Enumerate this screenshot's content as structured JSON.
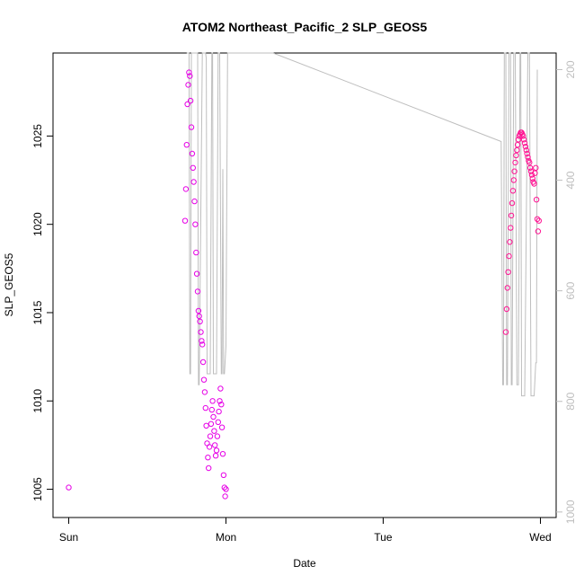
{
  "chart_data": {
    "type": "scatter",
    "title": "ATOM2 Northeast_Pacific_2 SLP_GEOS5",
    "xlabel": "Date",
    "ylabel": "SLP_GEOS5",
    "x_unit": "days from Sun 00:00",
    "xlim": [
      -0.1,
      3.1
    ],
    "ylim": [
      1003.4,
      1029.7
    ],
    "x_ticks": [
      {
        "value": 0,
        "label": "Sun"
      },
      {
        "value": 1,
        "label": "Mon"
      },
      {
        "value": 2,
        "label": "Tue"
      },
      {
        "value": 3,
        "label": "Wed"
      }
    ],
    "y_ticks": [
      {
        "value": 1005,
        "label": "1005"
      },
      {
        "value": 1010,
        "label": "1010"
      },
      {
        "value": 1015,
        "label": "1015"
      },
      {
        "value": 1020,
        "label": "1020"
      },
      {
        "value": 1025,
        "label": "1025"
      }
    ],
    "y2_lim": [
      1010,
      170
    ],
    "y2_ticks": [
      {
        "value": 200,
        "label": "200"
      },
      {
        "value": 400,
        "label": "400"
      },
      {
        "value": 600,
        "label": "600"
      },
      {
        "value": 800,
        "label": "800"
      },
      {
        "value": 1000,
        "label": "1000"
      }
    ],
    "colors": {
      "points": "#e600e6",
      "points_alt": "#ff1493",
      "line": "#bebebe"
    },
    "secondary_line": {
      "x": [
        0.75,
        0.765,
        0.77,
        0.775,
        0.78,
        0.8,
        0.82,
        0.825,
        0.83,
        0.85,
        0.87,
        0.875,
        0.88,
        0.9,
        0.91,
        0.915,
        0.92,
        0.94,
        0.95,
        0.955,
        0.96,
        0.97,
        0.975,
        0.98,
        0.985,
        0.99,
        1.0,
        1.01,
        1.3,
        2.75,
        2.76,
        2.765,
        2.77,
        2.78,
        2.785,
        2.79,
        2.8,
        2.81,
        2.815,
        2.82,
        2.83,
        2.84,
        2.85,
        2.86,
        2.87,
        2.875,
        2.88,
        2.9,
        2.92,
        2.93,
        2.94,
        2.96,
        2.97,
        2.975,
        2.98
      ],
      "y": [
        170,
        170,
        750,
        750,
        170,
        170,
        170,
        770,
        770,
        170,
        170,
        180,
        750,
        750,
        170,
        170,
        750,
        750,
        170,
        170,
        170,
        750,
        750,
        380,
        750,
        750,
        700,
        170,
        170,
        330,
        770,
        770,
        170,
        170,
        770,
        770,
        170,
        170,
        770,
        770,
        170,
        170,
        770,
        770,
        170,
        170,
        790,
        790,
        170,
        170,
        790,
        790,
        730,
        730,
        200
      ]
    },
    "series": [
      {
        "name": "",
        "x": [
          0.0,
          0.74,
          0.745,
          0.75,
          0.755,
          0.76,
          0.765,
          0.77,
          0.775,
          0.78,
          0.785,
          0.79,
          0.795,
          0.8,
          0.805,
          0.81,
          0.815,
          0.82,
          0.825,
          0.83,
          0.835,
          0.84,
          0.845,
          0.85,
          0.855,
          0.86,
          0.865,
          0.87,
          0.875,
          0.88,
          0.885,
          0.89,
          0.895,
          0.9,
          0.905,
          0.91,
          0.915,
          0.92,
          0.925,
          0.93,
          0.935,
          0.94,
          0.945,
          0.95,
          0.955,
          0.96,
          0.965,
          0.97,
          0.975,
          0.98,
          0.985,
          0.99,
          0.995,
          1.0
        ],
        "y": [
          1005.1,
          1020.2,
          1022.0,
          1024.5,
          1026.8,
          1027.9,
          1028.6,
          1028.4,
          1027.0,
          1025.5,
          1024.0,
          1023.2,
          1022.4,
          1021.3,
          1020.0,
          1018.4,
          1017.2,
          1016.2,
          1015.1,
          1014.8,
          1014.5,
          1013.9,
          1013.4,
          1013.2,
          1012.2,
          1011.2,
          1010.5,
          1009.6,
          1008.6,
          1007.6,
          1006.8,
          1006.2,
          1007.4,
          1008.0,
          1008.7,
          1009.5,
          1010.0,
          1009.1,
          1008.3,
          1007.5,
          1006.9,
          1007.2,
          1008.0,
          1008.8,
          1009.4,
          1010.0,
          1010.7,
          1009.8,
          1008.5,
          1007.0,
          1005.8,
          1005.1,
          1004.6,
          1005.0
        ]
      },
      {
        "name": "",
        "x": [
          2.78,
          2.785,
          2.79,
          2.795,
          2.8,
          2.805,
          2.81,
          2.815,
          2.82,
          2.825,
          2.83,
          2.835,
          2.84,
          2.845,
          2.85,
          2.855,
          2.86,
          2.865,
          2.87,
          2.875,
          2.88,
          2.885,
          2.89,
          2.895,
          2.9,
          2.905,
          2.91,
          2.915,
          2.92,
          2.925,
          2.93,
          2.935,
          2.94,
          2.945,
          2.95,
          2.955,
          2.96,
          2.965,
          2.97,
          2.975,
          2.98,
          2.985,
          2.99
        ],
        "y": [
          1013.9,
          1015.2,
          1016.4,
          1017.3,
          1018.2,
          1019.0,
          1019.8,
          1020.5,
          1021.2,
          1021.9,
          1022.5,
          1023.0,
          1023.5,
          1023.9,
          1024.2,
          1024.5,
          1024.8,
          1025.0,
          1025.1,
          1025.2,
          1025.2,
          1025.1,
          1025.0,
          1024.8,
          1024.6,
          1024.4,
          1024.2,
          1024.0,
          1023.8,
          1023.6,
          1023.5,
          1023.2,
          1023.0,
          1022.8,
          1022.6,
          1022.4,
          1022.3,
          1022.9,
          1023.2,
          1021.4,
          1020.3,
          1019.6,
          1020.2
        ]
      }
    ]
  }
}
